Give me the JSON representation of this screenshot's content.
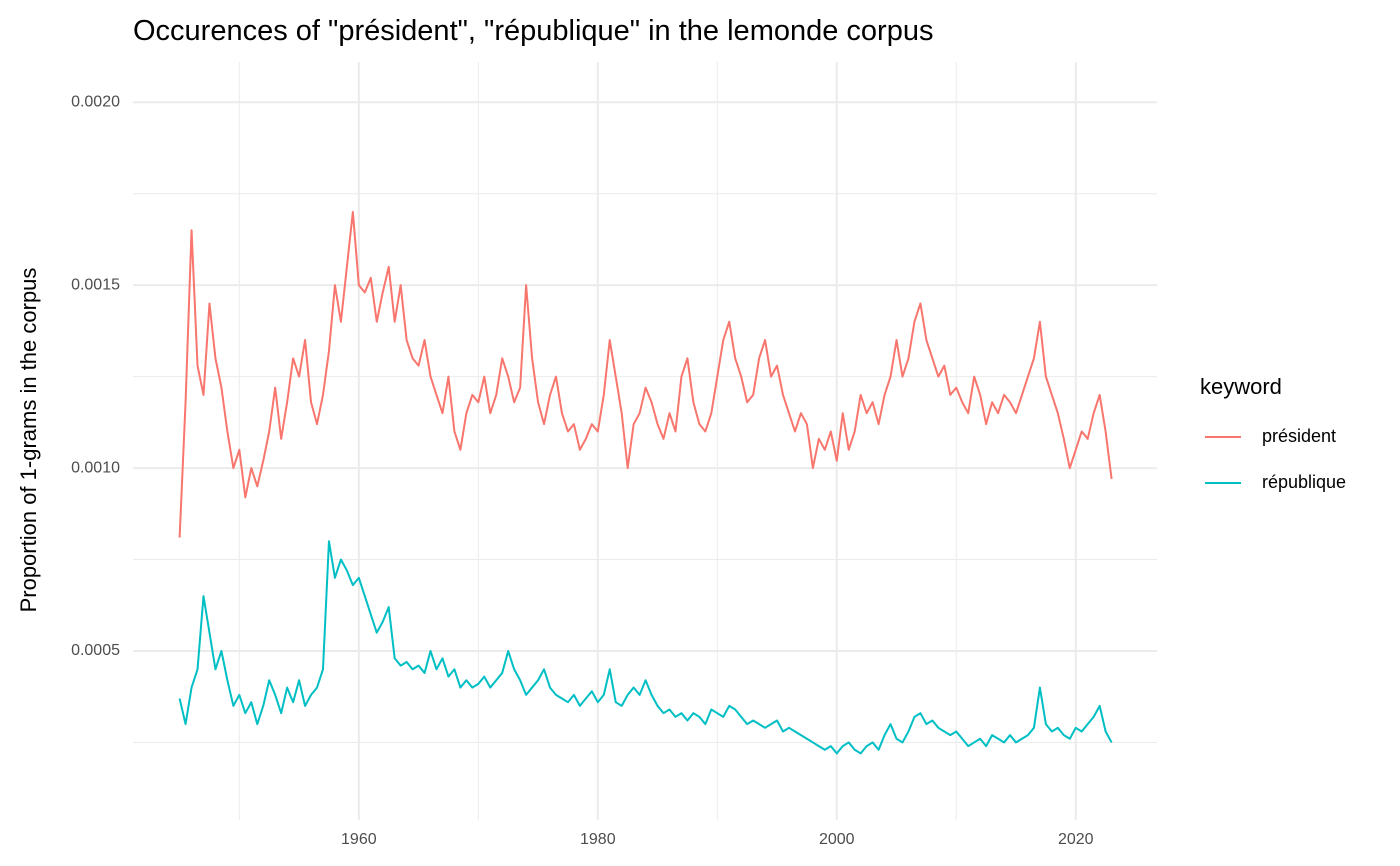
{
  "chart_data": {
    "type": "line",
    "title": "Occurences of \"président\", \"république\" in the lemonde corpus",
    "y_label": "Proportion of 1-grams in the corpus",
    "legend_title": "keyword",
    "legend_position": "right",
    "grid": true,
    "xlim": [
      1941.1,
      2026.8
    ],
    "ylim": [
      3.8e-05,
      0.00211
    ],
    "xticks": [
      1960,
      1980,
      2000,
      2020
    ],
    "x_minor_breaks": [
      1950,
      1970,
      1990,
      2010
    ],
    "yticks": [
      0.0005,
      {
        "value": 0.001,
        "label": "0.0010"
      },
      0.0015,
      {
        "value": 0.002,
        "label": "0.0020"
      }
    ],
    "y_minor_breaks": [
      0.00025,
      0.00075,
      0.00125,
      0.00175
    ],
    "x": [
      1945,
      1945.5,
      1946,
      1946.5,
      1947,
      1947.5,
      1948,
      1948.5,
      1949,
      1949.5,
      1950,
      1950.5,
      1951,
      1951.5,
      1952,
      1952.5,
      1953,
      1953.5,
      1954,
      1954.5,
      1955,
      1955.5,
      1956,
      1956.5,
      1957,
      1957.5,
      1958,
      1958.5,
      1959,
      1959.5,
      1960,
      1960.5,
      1961,
      1961.5,
      1962,
      1962.5,
      1963,
      1963.5,
      1964,
      1964.5,
      1965,
      1965.5,
      1966,
      1966.5,
      1967,
      1967.5,
      1968,
      1968.5,
      1969,
      1969.5,
      1970,
      1970.5,
      1971,
      1971.5,
      1972,
      1972.5,
      1973,
      1973.5,
      1974,
      1974.5,
      1975,
      1975.5,
      1976,
      1976.5,
      1977,
      1977.5,
      1978,
      1978.5,
      1979,
      1979.5,
      1980,
      1980.5,
      1981,
      1981.5,
      1982,
      1982.5,
      1983,
      1983.5,
      1984,
      1984.5,
      1985,
      1985.5,
      1986,
      1986.5,
      1987,
      1987.5,
      1988,
      1988.5,
      1989,
      1989.5,
      1990,
      1990.5,
      1991,
      1991.5,
      1992,
      1992.5,
      1993,
      1993.5,
      1994,
      1994.5,
      1995,
      1995.5,
      1996,
      1996.5,
      1997,
      1997.5,
      1998,
      1998.5,
      1999,
      1999.5,
      2000,
      2000.5,
      2001,
      2001.5,
      2002,
      2002.5,
      2003,
      2003.5,
      2004,
      2004.5,
      2005,
      2005.5,
      2006,
      2006.5,
      2007,
      2007.5,
      2008,
      2008.5,
      2009,
      2009.5,
      2010,
      2010.5,
      2011,
      2011.5,
      2012,
      2012.5,
      2013,
      2013.5,
      2014,
      2014.5,
      2015,
      2015.5,
      2016,
      2016.5,
      2017,
      2017.5,
      2018,
      2018.5,
      2019,
      2019.5,
      2020,
      2020.5,
      2021,
      2021.5,
      2022,
      2022.5,
      2023
    ],
    "series": [
      {
        "name": "président",
        "color": "#F8766D",
        "values": [
          0.00081,
          0.00118,
          0.00165,
          0.00128,
          0.0012,
          0.00145,
          0.0013,
          0.00122,
          0.0011,
          0.001,
          0.00105,
          0.00092,
          0.001,
          0.00095,
          0.00102,
          0.0011,
          0.00122,
          0.00108,
          0.00118,
          0.0013,
          0.00125,
          0.00135,
          0.00118,
          0.00112,
          0.0012,
          0.00132,
          0.0015,
          0.0014,
          0.00155,
          0.0017,
          0.0015,
          0.00148,
          0.00152,
          0.0014,
          0.00148,
          0.00155,
          0.0014,
          0.0015,
          0.00135,
          0.0013,
          0.00128,
          0.00135,
          0.00125,
          0.0012,
          0.00115,
          0.00125,
          0.0011,
          0.00105,
          0.00115,
          0.0012,
          0.00118,
          0.00125,
          0.00115,
          0.0012,
          0.0013,
          0.00125,
          0.00118,
          0.00122,
          0.0015,
          0.0013,
          0.00118,
          0.00112,
          0.0012,
          0.00125,
          0.00115,
          0.0011,
          0.00112,
          0.00105,
          0.00108,
          0.00112,
          0.0011,
          0.0012,
          0.00135,
          0.00125,
          0.00115,
          0.001,
          0.00112,
          0.00115,
          0.00122,
          0.00118,
          0.00112,
          0.00108,
          0.00115,
          0.0011,
          0.00125,
          0.0013,
          0.00118,
          0.00112,
          0.0011,
          0.00115,
          0.00125,
          0.00135,
          0.0014,
          0.0013,
          0.00125,
          0.00118,
          0.0012,
          0.0013,
          0.00135,
          0.00125,
          0.00128,
          0.0012,
          0.00115,
          0.0011,
          0.00115,
          0.00112,
          0.001,
          0.00108,
          0.00105,
          0.0011,
          0.00102,
          0.00115,
          0.00105,
          0.0011,
          0.0012,
          0.00115,
          0.00118,
          0.00112,
          0.0012,
          0.00125,
          0.00135,
          0.00125,
          0.0013,
          0.0014,
          0.00145,
          0.00135,
          0.0013,
          0.00125,
          0.00128,
          0.0012,
          0.00122,
          0.00118,
          0.00115,
          0.00125,
          0.0012,
          0.00112,
          0.00118,
          0.00115,
          0.0012,
          0.00118,
          0.00115,
          0.0012,
          0.00125,
          0.0013,
          0.0014,
          0.00125,
          0.0012,
          0.00115,
          0.00108,
          0.001,
          0.00105,
          0.0011,
          0.00108,
          0.00115,
          0.0012,
          0.0011,
          0.00097
        ]
      },
      {
        "name": "république",
        "color": "#00BFC4",
        "values": [
          0.00037,
          0.0003,
          0.0004,
          0.00045,
          0.00065,
          0.00055,
          0.00045,
          0.0005,
          0.00042,
          0.00035,
          0.00038,
          0.00033,
          0.00036,
          0.0003,
          0.00035,
          0.00042,
          0.00038,
          0.00033,
          0.0004,
          0.00036,
          0.00042,
          0.00035,
          0.00038,
          0.0004,
          0.00045,
          0.0008,
          0.0007,
          0.00075,
          0.00072,
          0.00068,
          0.0007,
          0.00065,
          0.0006,
          0.00055,
          0.00058,
          0.00062,
          0.00048,
          0.00046,
          0.00047,
          0.00045,
          0.00046,
          0.00044,
          0.0005,
          0.00045,
          0.00048,
          0.00043,
          0.00045,
          0.0004,
          0.00042,
          0.0004,
          0.00041,
          0.00043,
          0.0004,
          0.00042,
          0.00044,
          0.0005,
          0.00045,
          0.00042,
          0.00038,
          0.0004,
          0.00042,
          0.00045,
          0.0004,
          0.00038,
          0.00037,
          0.00036,
          0.00038,
          0.00035,
          0.00037,
          0.00039,
          0.00036,
          0.00038,
          0.00045,
          0.00036,
          0.00035,
          0.00038,
          0.0004,
          0.00038,
          0.00042,
          0.00038,
          0.00035,
          0.00033,
          0.00034,
          0.00032,
          0.00033,
          0.00031,
          0.00033,
          0.00032,
          0.0003,
          0.00034,
          0.00033,
          0.00032,
          0.00035,
          0.00034,
          0.00032,
          0.0003,
          0.00031,
          0.0003,
          0.00029,
          0.0003,
          0.00031,
          0.00028,
          0.00029,
          0.00028,
          0.00027,
          0.00026,
          0.00025,
          0.00024,
          0.00023,
          0.00024,
          0.00022,
          0.00024,
          0.00025,
          0.00023,
          0.00022,
          0.00024,
          0.00025,
          0.00023,
          0.00027,
          0.0003,
          0.00026,
          0.00025,
          0.00028,
          0.00032,
          0.00033,
          0.0003,
          0.00031,
          0.00029,
          0.00028,
          0.00027,
          0.00028,
          0.00026,
          0.00024,
          0.00025,
          0.00026,
          0.00024,
          0.00027,
          0.00026,
          0.00025,
          0.00027,
          0.00025,
          0.00026,
          0.00027,
          0.00029,
          0.0004,
          0.0003,
          0.00028,
          0.00029,
          0.00027,
          0.00026,
          0.00029,
          0.00028,
          0.0003,
          0.00032,
          0.00035,
          0.00028,
          0.00025
        ]
      }
    ]
  }
}
